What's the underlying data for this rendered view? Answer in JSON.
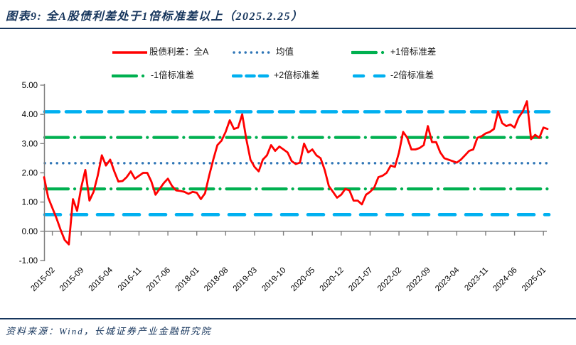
{
  "title": "图表9:  全A股债利差处于1倍标准差以上（2025.2.25）",
  "source": "资料来源：Wind，长城证券产业金融研究院",
  "colors": {
    "spread_line": "#FF0000",
    "mean_line": "#2E75B6",
    "sd1_line": "#00B050",
    "sd2_line": "#00B0F0",
    "heading": "#17365D",
    "axis": "#808080",
    "tick_label": "#000000"
  },
  "legend": [
    {
      "label": "股债利差：全A",
      "style": "solid-red"
    },
    {
      "label": "均值",
      "style": "dot-blue"
    },
    {
      "label": "+1倍标准差",
      "style": "dashdot-green"
    },
    {
      "label": "-1倍标准差",
      "style": "dashdot-green"
    },
    {
      "label": "+2倍标准差",
      "style": "dash-cyan-dense"
    },
    {
      "label": "-2倍标准差",
      "style": "dash-cyan-sparse"
    }
  ],
  "chart_data": {
    "type": "line",
    "title": "全A股债利差处于1倍标准差以上（2025.2.25）",
    "ylim": [
      -1.0,
      5.0
    ],
    "y_ticks": [
      "5.00",
      "4.00",
      "3.00",
      "2.00",
      "1.00",
      "0.00",
      "-1.00"
    ],
    "x_range": [
      "2014-12",
      "2025-02"
    ],
    "x_tick_labels": [
      "2015-02",
      "2015-09",
      "2016-04",
      "2016-11",
      "2017-06",
      "2018-01",
      "2018-08",
      "2019-03",
      "2019-10",
      "2020-05",
      "2020-12",
      "2021-07",
      "2022-02",
      "2022-09",
      "2023-04",
      "2023-11",
      "2024-06",
      "2025-01"
    ],
    "x_tick_start_index": 2,
    "x_tick_step": 7,
    "grid": false,
    "legend_position": "top",
    "series": [
      {
        "name": "股债利差：全A",
        "frequency": "monthly",
        "values": [
          1.85,
          1.15,
          0.8,
          0.45,
          0.05,
          -0.3,
          -0.45,
          1.1,
          0.7,
          1.5,
          2.1,
          1.05,
          1.35,
          1.9,
          2.6,
          2.25,
          2.45,
          2.05,
          1.7,
          1.72,
          1.85,
          2.05,
          1.8,
          1.9,
          2.0,
          2.0,
          1.7,
          1.25,
          1.45,
          1.65,
          1.8,
          1.55,
          1.4,
          1.38,
          1.35,
          1.28,
          1.35,
          1.32,
          1.1,
          1.3,
          1.9,
          2.45,
          2.95,
          3.1,
          3.4,
          3.8,
          3.5,
          3.55,
          4.0,
          3.15,
          2.45,
          2.2,
          2.05,
          2.45,
          2.6,
          2.95,
          2.75,
          2.9,
          2.8,
          2.7,
          2.4,
          2.3,
          2.35,
          3.0,
          2.7,
          2.8,
          2.6,
          2.5,
          2.1,
          1.55,
          1.35,
          1.15,
          1.25,
          1.45,
          1.4,
          1.05,
          1.05,
          0.92,
          1.25,
          1.35,
          1.5,
          1.85,
          1.9,
          2.0,
          2.25,
          2.2,
          2.7,
          3.4,
          3.2,
          2.8,
          2.8,
          2.85,
          2.95,
          3.6,
          3.05,
          3.05,
          2.7,
          2.5,
          2.45,
          2.4,
          2.35,
          2.45,
          2.6,
          2.75,
          2.8,
          3.2,
          3.25,
          3.35,
          3.4,
          3.5,
          4.1,
          3.7,
          3.6,
          3.65,
          3.55,
          3.9,
          4.1,
          4.45,
          3.15,
          3.3,
          3.2,
          3.55,
          3.5
        ]
      }
    ],
    "reference_lines": [
      {
        "name": "+2倍标准差",
        "value": 4.09
      },
      {
        "name": "+1倍标准差",
        "value": 3.21
      },
      {
        "name": "均值",
        "value": 2.33
      },
      {
        "name": "-1倍标准差",
        "value": 1.45
      },
      {
        "name": "-2倍标准差",
        "value": 0.57
      }
    ]
  }
}
